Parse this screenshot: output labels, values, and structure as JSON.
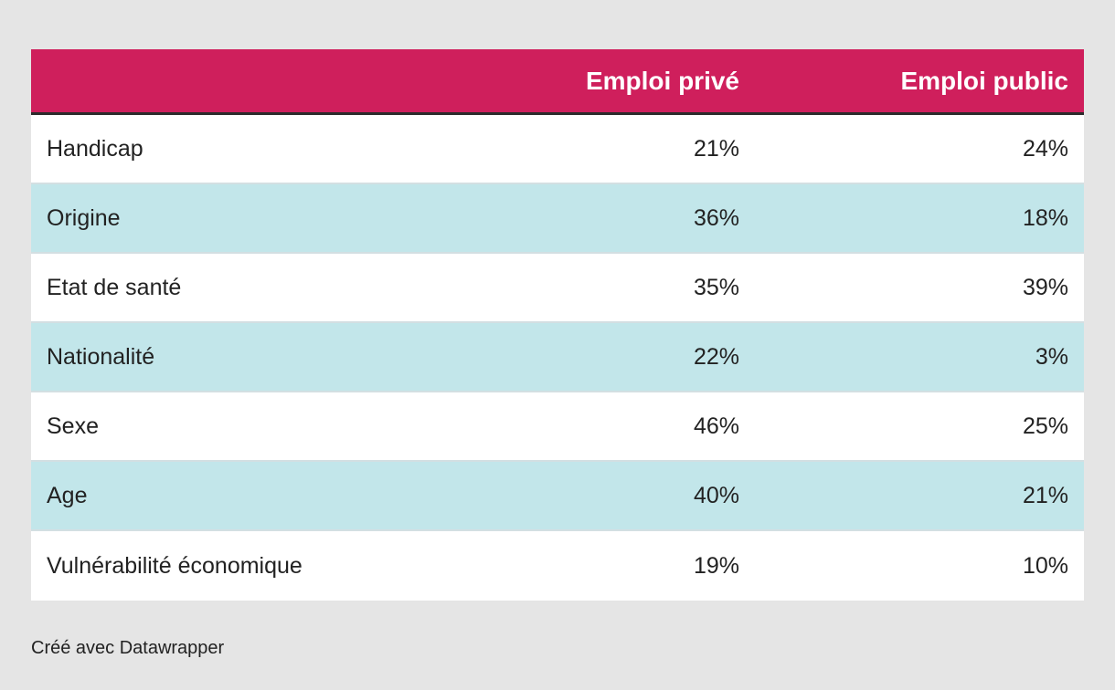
{
  "chart_data": {
    "type": "table",
    "columns": [
      "",
      "Emploi privé",
      "Emploi public"
    ],
    "rows": [
      {
        "label": "Handicap",
        "prive": "21%",
        "public": "24%"
      },
      {
        "label": "Origine",
        "prive": "36%",
        "public": "18%"
      },
      {
        "label": "Etat de santé",
        "prive": "35%",
        "public": "39%"
      },
      {
        "label": "Nationalité",
        "prive": "22%",
        "public": "3%"
      },
      {
        "label": "Sexe",
        "prive": "46%",
        "public": "25%"
      },
      {
        "label": "Age",
        "prive": "40%",
        "public": "21%"
      },
      {
        "label": "Vulnérabilité économique",
        "prive": "19%",
        "public": "10%"
      }
    ],
    "series": [
      {
        "name": "Emploi privé",
        "values": [
          21,
          36,
          35,
          22,
          46,
          40,
          19
        ]
      },
      {
        "name": "Emploi public",
        "values": [
          24,
          18,
          39,
          3,
          25,
          21,
          10
        ]
      }
    ],
    "categories": [
      "Handicap",
      "Origine",
      "Etat de santé",
      "Nationalité",
      "Sexe",
      "Age",
      "Vulnérabilité économique"
    ]
  },
  "footer": "Créé avec Datawrapper",
  "colors": {
    "header_bg": "#cf1f5c",
    "row_alt": "#c2e6ea",
    "background": "#e5e5e5"
  }
}
